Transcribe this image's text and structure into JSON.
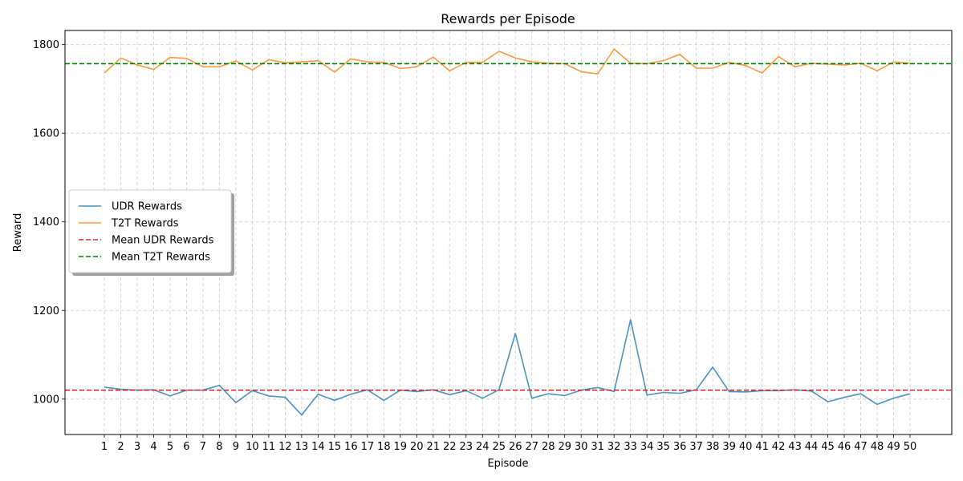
{
  "chart_data": {
    "type": "line",
    "title": "Rewards per Episode",
    "xlabel": "Episode",
    "ylabel": "Reward",
    "ylim": [
      920,
      1832
    ],
    "yticks": [
      1000,
      1200,
      1400,
      1600,
      1800
    ],
    "x": [
      1,
      2,
      3,
      4,
      5,
      6,
      7,
      8,
      9,
      10,
      11,
      12,
      13,
      14,
      15,
      16,
      17,
      18,
      19,
      20,
      21,
      22,
      23,
      24,
      25,
      26,
      27,
      28,
      29,
      30,
      31,
      32,
      33,
      34,
      35,
      36,
      37,
      38,
      39,
      40,
      41,
      42,
      43,
      44,
      45,
      46,
      47,
      48,
      49,
      50
    ],
    "grid": true,
    "legend_position": "center-left",
    "series": [
      {
        "name": "UDR Rewards",
        "color": "#1f77b4",
        "style": "solid",
        "values": [
          1027,
          1022,
          1020,
          1021,
          1007,
          1020,
          1020,
          1031,
          992,
          1019,
          1007,
          1004,
          964,
          1011,
          997,
          1011,
          1021,
          997,
          1020,
          1017,
          1021,
          1010,
          1019,
          1002,
          1021,
          1148,
          1002,
          1012,
          1008,
          1020,
          1026,
          1017,
          1179,
          1009,
          1015,
          1013,
          1021,
          1072,
          1017,
          1016,
          1019,
          1019,
          1021,
          1018,
          994,
          1004,
          1012,
          988,
          1002,
          1012
        ]
      },
      {
        "name": "T2T Rewards",
        "color": "#ff7f0e",
        "style": "solid",
        "values": [
          1736,
          1770,
          1754,
          1744,
          1771,
          1769,
          1750,
          1750,
          1763,
          1743,
          1766,
          1759,
          1761,
          1764,
          1738,
          1768,
          1761,
          1760,
          1746,
          1750,
          1772,
          1741,
          1760,
          1760,
          1785,
          1770,
          1761,
          1758,
          1757,
          1739,
          1734,
          1790,
          1758,
          1757,
          1764,
          1778,
          1747,
          1747,
          1760,
          1753,
          1736,
          1773,
          1750,
          1758,
          1756,
          1754,
          1758,
          1741,
          1761,
          1758
        ]
      },
      {
        "name": "Mean UDR Rewards",
        "color": "#d62728",
        "style": "dashed",
        "constant": 1020
      },
      {
        "name": "Mean T2T Rewards",
        "color": "#008000",
        "style": "dashed",
        "constant": 1757
      }
    ]
  }
}
